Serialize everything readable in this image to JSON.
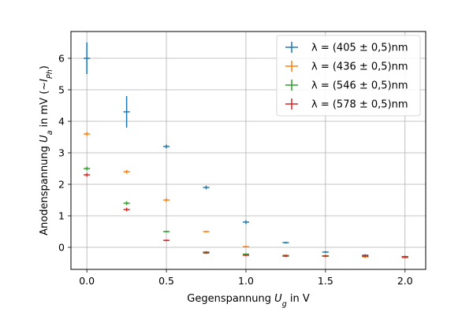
{
  "chart_data": {
    "type": "scatter",
    "xlabel": "Gegenspannung U_g in V",
    "ylabel": "Anodenspannung U_a in mV (~I_Ph)",
    "xlim": [
      -0.1,
      2.13
    ],
    "ylim": [
      -0.7,
      6.85
    ],
    "xticks": [
      "0.0",
      "0.5",
      "1.0",
      "1.5",
      "2.0"
    ],
    "yticks": [
      "0",
      "1",
      "2",
      "3",
      "4",
      "5",
      "6"
    ],
    "grid": true,
    "legend_position": "top-right",
    "series": [
      {
        "name": "λ = (405 ± 0,5)nm",
        "color": "#1f77b4",
        "x": [
          0.0,
          0.25,
          0.5,
          0.75,
          1.0,
          1.25,
          1.5,
          1.75,
          2.0
        ],
        "y": [
          6.0,
          4.3,
          3.2,
          1.9,
          0.8,
          0.15,
          -0.15,
          -0.25,
          -0.3
        ],
        "yerr": [
          0.5,
          0.5,
          0.06,
          0.06,
          0.06,
          0.03,
          0.03,
          0.03,
          0.03
        ],
        "xerr": 0.02
      },
      {
        "name": "λ = (436 ± 0,5)nm",
        "color": "#ff7f0e",
        "x": [
          0.0,
          0.25,
          0.5,
          0.75,
          1.0,
          1.25,
          1.5,
          1.75,
          2.0
        ],
        "y": [
          3.6,
          2.4,
          1.5,
          0.5,
          0.02,
          -0.25,
          -0.28,
          -0.3,
          -0.33
        ],
        "yerr": [
          0.06,
          0.06,
          0.06,
          0.03,
          0.03,
          0.03,
          0.03,
          0.03,
          0.03
        ],
        "xerr": 0.02
      },
      {
        "name": "λ = (546 ± 0,5)nm",
        "color": "#2ca02c",
        "x": [
          0.0,
          0.25,
          0.5,
          0.75,
          1.0,
          1.25,
          1.5,
          1.75,
          2.0
        ],
        "y": [
          2.5,
          1.4,
          0.5,
          -0.15,
          -0.22,
          -0.27,
          -0.27,
          -0.28,
          -0.3
        ],
        "yerr": [
          0.06,
          0.06,
          0.03,
          0.03,
          0.03,
          0.03,
          0.03,
          0.03,
          0.03
        ],
        "xerr": 0.02
      },
      {
        "name": "λ = (578 ± 0,5)nm",
        "color": "#d62728",
        "x": [
          0.0,
          0.25,
          0.5,
          0.75,
          1.0,
          1.25,
          1.5,
          1.75,
          2.0
        ],
        "y": [
          2.3,
          1.2,
          0.22,
          -0.18,
          -0.25,
          -0.28,
          -0.28,
          -0.28,
          -0.3
        ],
        "yerr": [
          0.06,
          0.06,
          0.03,
          0.03,
          0.03,
          0.03,
          0.03,
          0.03,
          0.03
        ],
        "xerr": 0.02
      }
    ]
  }
}
